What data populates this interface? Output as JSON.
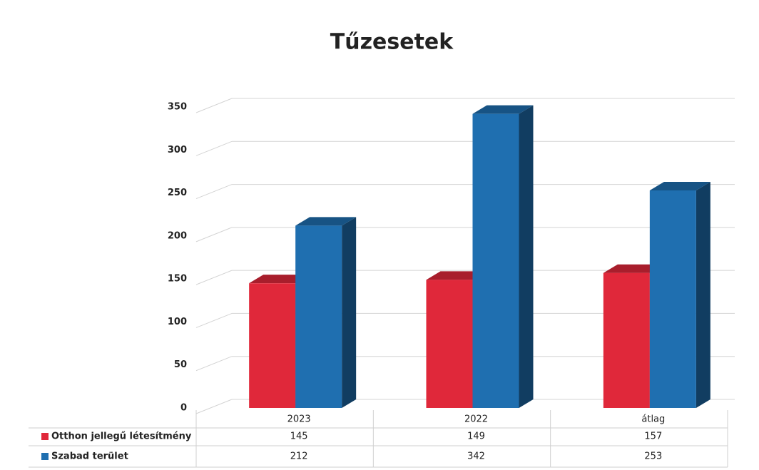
{
  "chart_data": {
    "type": "bar",
    "title": "Tűzesetek",
    "categories": [
      "2023",
      "2022",
      "átlag"
    ],
    "series": [
      {
        "name": "Otthon jellegű létesítmény",
        "color": "#e0283a",
        "values": [
          145,
          149,
          157
        ]
      },
      {
        "name": "Szabad terület",
        "color": "#1f6fb0",
        "values": [
          212,
          342,
          253
        ]
      }
    ],
    "ylim": [
      0,
      350
    ],
    "yticks": [
      0,
      50,
      100,
      150,
      200,
      250,
      300,
      350
    ],
    "grid": true
  }
}
